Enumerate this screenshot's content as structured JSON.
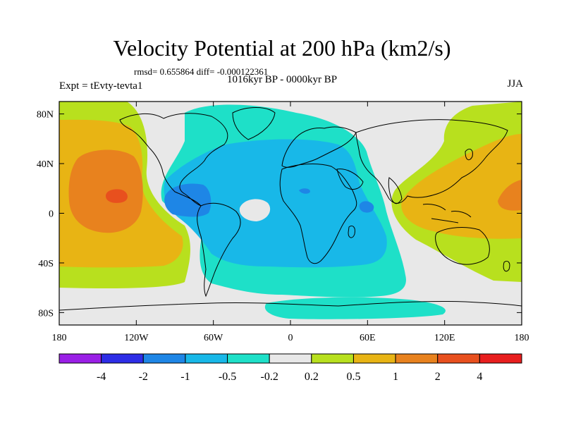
{
  "title": "Velocity Potential at 200 hPa (km2/s)",
  "stats": "rmsd= 0.655864 diff= -0.000122361",
  "period": "1016kyr BP - 0000kyr BP",
  "experiment": "Expt = tEvty-tevta1",
  "season": "JJA",
  "map": {
    "projection": "cylindrical equidistant",
    "lon_range": [
      -180,
      180
    ],
    "lat_range": [
      -90,
      90
    ],
    "lat_ticks": [
      {
        "value": 80,
        "label": "80N"
      },
      {
        "value": 40,
        "label": "40N"
      },
      {
        "value": 0,
        "label": "0"
      },
      {
        "value": -40,
        "label": "40S"
      },
      {
        "value": -80,
        "label": "80S"
      }
    ],
    "lon_ticks": [
      {
        "value": -180,
        "label": "180"
      },
      {
        "value": -120,
        "label": "120W"
      },
      {
        "value": -60,
        "label": "60W"
      },
      {
        "value": 0,
        "label": "0"
      },
      {
        "value": 60,
        "label": "60E"
      },
      {
        "value": 120,
        "label": "120E"
      },
      {
        "value": 180,
        "label": "180"
      }
    ]
  },
  "colorbar": {
    "levels": [
      "-4",
      "-2",
      "-1",
      "-0.5",
      "-0.2",
      "0.2",
      "0.5",
      "1",
      "2",
      "4"
    ],
    "colors": [
      "#9a1fe6",
      "#2d2de6",
      "#1e86e6",
      "#18b8e8",
      "#1ee0c8",
      "#e8e8e8",
      "#b8e01e",
      "#e8b414",
      "#e8821e",
      "#e8501e",
      "#e81e1e"
    ]
  }
}
